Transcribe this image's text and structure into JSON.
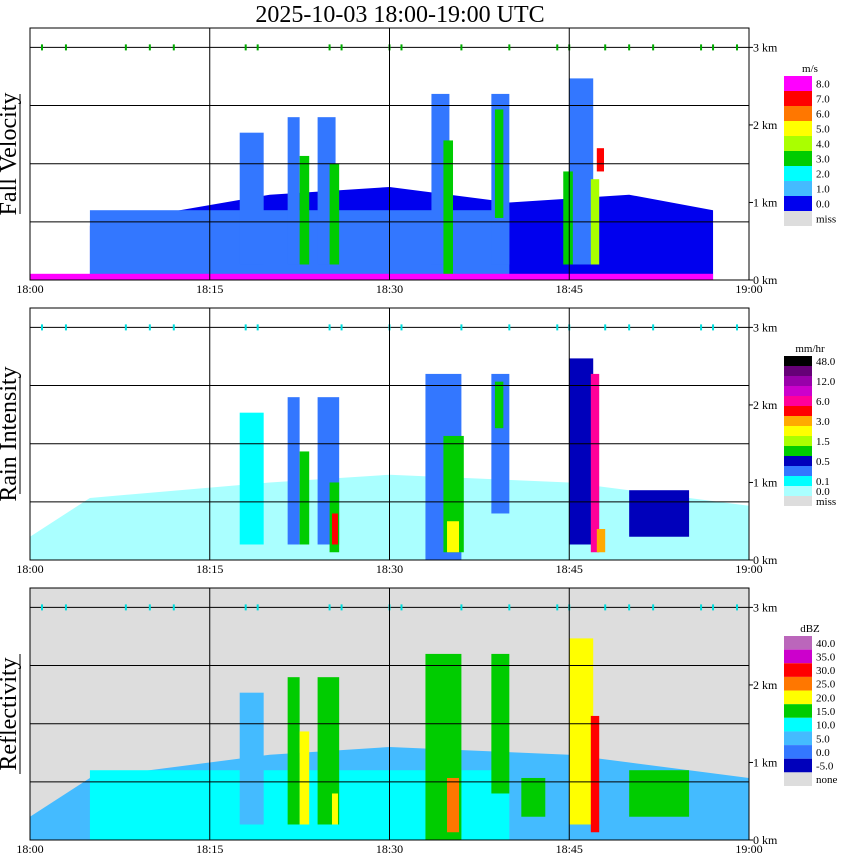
{
  "title": "2025-10-03   18:00-19:00 UTC",
  "time_ticks": [
    "18:00",
    "18:15",
    "18:30",
    "18:45",
    "19:00"
  ],
  "height_ticks": [
    "0 km",
    "1 km",
    "2 km",
    "3 km"
  ],
  "palette": {
    "white": "#ffffff",
    "lightcyan": "#aaffff",
    "cyan": "#00ffff",
    "lightblue": "#44bbff",
    "mediumblue": "#3377ff",
    "blue": "#0000ee",
    "darkblue": "#0000bb",
    "green": "#00cc00",
    "yellowgreen": "#aaff00",
    "yellow": "#ffff00",
    "orange": "#ffaa00",
    "darkorange": "#ff7700",
    "red": "#ff0000",
    "hotpink": "#ff0099",
    "magenta": "#ff00ff",
    "violet": "#cc00cc",
    "purple": "#9900aa",
    "lightpurple": "#bb66bb",
    "darkpurple": "#660077",
    "black": "#000000",
    "miss": "#dddddd"
  },
  "chart_data": [
    {
      "type": "heatmap",
      "panel": "velocity",
      "ylabel": "Fall Velocity",
      "unit": "m/s",
      "time_range": [
        "18:00",
        "19:00"
      ],
      "height_range_km": [
        0,
        3
      ],
      "bg": "white",
      "legend": [
        {
          "label": "8.0",
          "color": "magenta"
        },
        {
          "label": "7.0",
          "color": "red"
        },
        {
          "label": "6.0",
          "color": "darkorange"
        },
        {
          "label": "5.0",
          "color": "yellow"
        },
        {
          "label": "4.0",
          "color": "yellowgreen"
        },
        {
          "label": "3.0",
          "color": "green"
        },
        {
          "label": "2.0",
          "color": "cyan"
        },
        {
          "label": "1.0",
          "color": "lightblue"
        },
        {
          "label": "0.0",
          "color": "blue"
        },
        {
          "label": "miss",
          "color": "miss"
        }
      ],
      "base_layer": [
        [
          5,
          0.7,
          "blue"
        ],
        [
          20,
          1.1,
          "blue"
        ],
        [
          30,
          1.2,
          "blue"
        ],
        [
          40,
          1.0,
          "blue"
        ],
        [
          50,
          1.1,
          "blue"
        ],
        [
          57,
          0.9,
          "blue"
        ]
      ],
      "features": [
        {
          "t": [
            5,
            40
          ],
          "h": [
            0.0,
            0.9
          ],
          "color": "mediumblue"
        },
        {
          "t": [
            17.5,
            19.5
          ],
          "h": [
            0.2,
            1.9
          ],
          "color": "mediumblue"
        },
        {
          "t": [
            21.5,
            22.5
          ],
          "h": [
            0.2,
            2.1
          ],
          "color": "mediumblue"
        },
        {
          "t": [
            24,
            25.5
          ],
          "h": [
            0.2,
            2.1
          ],
          "color": "mediumblue"
        },
        {
          "t": [
            33.5,
            35
          ],
          "h": [
            0.2,
            2.4
          ],
          "color": "mediumblue"
        },
        {
          "t": [
            38.5,
            40
          ],
          "h": [
            0.2,
            2.4
          ],
          "color": "mediumblue"
        },
        {
          "t": [
            45,
            47
          ],
          "h": [
            0.2,
            2.6
          ],
          "color": "mediumblue"
        },
        {
          "t": [
            22.5,
            23.3
          ],
          "h": [
            0.2,
            1.6
          ],
          "color": "green"
        },
        {
          "t": [
            25,
            25.8
          ],
          "h": [
            0.2,
            1.5
          ],
          "color": "green"
        },
        {
          "t": [
            34.5,
            35.3
          ],
          "h": [
            0.0,
            1.8
          ],
          "color": "green"
        },
        {
          "t": [
            38.8,
            39.5
          ],
          "h": [
            0.8,
            2.2
          ],
          "color": "green"
        },
        {
          "t": [
            44.5,
            45.3
          ],
          "h": [
            0.2,
            1.4
          ],
          "color": "green"
        },
        {
          "t": [
            46.8,
            47.5
          ],
          "h": [
            0.2,
            1.3
          ],
          "color": "yellowgreen"
        },
        {
          "t": [
            47.3,
            47.9
          ],
          "h": [
            1.4,
            1.7
          ],
          "color": "red"
        },
        {
          "t": [
            0,
            57
          ],
          "h": [
            0.0,
            0.08
          ],
          "color": "magenta"
        }
      ],
      "dots": [
        1,
        3,
        8,
        10,
        12,
        18,
        19,
        25,
        26,
        30,
        31,
        36,
        40,
        44,
        45,
        48,
        50,
        52,
        56,
        57,
        59
      ]
    },
    {
      "type": "heatmap",
      "panel": "rain",
      "ylabel": "Rain Intensity",
      "unit": "mm/hr",
      "time_range": [
        "18:00",
        "19:00"
      ],
      "height_range_km": [
        0,
        3
      ],
      "bg": "white",
      "legend": [
        {
          "label": "48.0",
          "color": "black"
        },
        {
          "label": "",
          "color": "darkpurple"
        },
        {
          "label": "12.0",
          "color": "purple"
        },
        {
          "label": "",
          "color": "violet"
        },
        {
          "label": "6.0",
          "color": "hotpink"
        },
        {
          "label": "",
          "color": "red"
        },
        {
          "label": "3.0",
          "color": "orange"
        },
        {
          "label": "",
          "color": "yellow"
        },
        {
          "label": "1.5",
          "color": "yellowgreen"
        },
        {
          "label": "",
          "color": "green"
        },
        {
          "label": "0.5",
          "color": "darkblue"
        },
        {
          "label": "",
          "color": "mediumblue"
        },
        {
          "label": "0.1",
          "color": "cyan"
        },
        {
          "label": "0.0",
          "color": "lightcyan"
        },
        {
          "label": "miss",
          "color": "miss"
        }
      ],
      "base_layer": [
        [
          0,
          0.3,
          "lightcyan"
        ],
        [
          5,
          0.8,
          "lightcyan"
        ],
        [
          20,
          1.0,
          "lightcyan"
        ],
        [
          30,
          1.1,
          "lightcyan"
        ],
        [
          45,
          1.0,
          "lightcyan"
        ],
        [
          60,
          0.7,
          "lightcyan"
        ]
      ],
      "features": [
        {
          "t": [
            17.5,
            19.5
          ],
          "h": [
            0.2,
            1.9
          ],
          "color": "cyan"
        },
        {
          "t": [
            21.5,
            22.5
          ],
          "h": [
            0.2,
            2.1
          ],
          "color": "mediumblue"
        },
        {
          "t": [
            24,
            25.8
          ],
          "h": [
            0.2,
            2.1
          ],
          "color": "mediumblue"
        },
        {
          "t": [
            33,
            36
          ],
          "h": [
            0.0,
            2.4
          ],
          "color": "mediumblue"
        },
        {
          "t": [
            38.5,
            40
          ],
          "h": [
            0.6,
            2.4
          ],
          "color": "mediumblue"
        },
        {
          "t": [
            45,
            47
          ],
          "h": [
            0.2,
            2.6
          ],
          "color": "darkblue"
        },
        {
          "t": [
            22.5,
            23.3
          ],
          "h": [
            0.2,
            1.4
          ],
          "color": "green"
        },
        {
          "t": [
            25,
            25.8
          ],
          "h": [
            0.1,
            1.0
          ],
          "color": "green"
        },
        {
          "t": [
            25.2,
            25.7
          ],
          "h": [
            0.2,
            0.6
          ],
          "color": "red"
        },
        {
          "t": [
            34.5,
            36.2
          ],
          "h": [
            0.1,
            1.6
          ],
          "color": "green"
        },
        {
          "t": [
            34.8,
            35.8
          ],
          "h": [
            0.1,
            0.5
          ],
          "color": "yellow"
        },
        {
          "t": [
            38.8,
            39.5
          ],
          "h": [
            1.7,
            2.3
          ],
          "color": "green"
        },
        {
          "t": [
            46.8,
            47.5
          ],
          "h": [
            0.1,
            2.4
          ],
          "color": "hotpink"
        },
        {
          "t": [
            47.3,
            48
          ],
          "h": [
            0.1,
            0.4
          ],
          "color": "orange"
        },
        {
          "t": [
            50,
            55
          ],
          "h": [
            0.3,
            0.9
          ],
          "color": "darkblue"
        }
      ],
      "dots": [
        1,
        3,
        8,
        10,
        12,
        18,
        19,
        25,
        26,
        30,
        31,
        36,
        40,
        44,
        45,
        48,
        50,
        52,
        56,
        57,
        59
      ]
    },
    {
      "type": "heatmap",
      "panel": "reflectivity",
      "ylabel": "Reflectivity",
      "unit": "dBZ",
      "time_range": [
        "18:00",
        "19:00"
      ],
      "height_range_km": [
        0,
        3
      ],
      "bg": "miss",
      "legend": [
        {
          "label": "40.0",
          "color": "lightpurple"
        },
        {
          "label": "35.0",
          "color": "violet"
        },
        {
          "label": "30.0",
          "color": "red"
        },
        {
          "label": "25.0",
          "color": "darkorange"
        },
        {
          "label": "20.0",
          "color": "yellow"
        },
        {
          "label": "15.0",
          "color": "green"
        },
        {
          "label": "10.0",
          "color": "cyan"
        },
        {
          "label": "5.0",
          "color": "lightblue"
        },
        {
          "label": "0.0",
          "color": "mediumblue"
        },
        {
          "label": "-5.0",
          "color": "darkblue"
        },
        {
          "label": "none",
          "color": "miss"
        }
      ],
      "base_layer": [
        [
          0,
          0.3,
          "lightblue"
        ],
        [
          5,
          0.8,
          "lightblue"
        ],
        [
          20,
          1.1,
          "lightblue"
        ],
        [
          30,
          1.2,
          "lightblue"
        ],
        [
          45,
          1.1,
          "lightblue"
        ],
        [
          60,
          0.8,
          "lightblue"
        ]
      ],
      "features": [
        {
          "t": [
            5,
            40
          ],
          "h": [
            0.0,
            0.9
          ],
          "color": "cyan"
        },
        {
          "t": [
            17.5,
            19.5
          ],
          "h": [
            0.2,
            1.9
          ],
          "color": "lightblue"
        },
        {
          "t": [
            21.5,
            22.5
          ],
          "h": [
            0.2,
            2.1
          ],
          "color": "green"
        },
        {
          "t": [
            24,
            25.8
          ],
          "h": [
            0.2,
            2.1
          ],
          "color": "green"
        },
        {
          "t": [
            33,
            36
          ],
          "h": [
            0.0,
            2.4
          ],
          "color": "green"
        },
        {
          "t": [
            38.5,
            40
          ],
          "h": [
            0.6,
            2.4
          ],
          "color": "green"
        },
        {
          "t": [
            45,
            47
          ],
          "h": [
            0.2,
            2.6
          ],
          "color": "yellow"
        },
        {
          "t": [
            22.5,
            23.3
          ],
          "h": [
            0.2,
            1.4
          ],
          "color": "yellow"
        },
        {
          "t": [
            25.2,
            25.7
          ],
          "h": [
            0.2,
            0.6
          ],
          "color": "yellow"
        },
        {
          "t": [
            34.8,
            35.8
          ],
          "h": [
            0.1,
            0.8
          ],
          "color": "darkorange"
        },
        {
          "t": [
            46.8,
            47.5
          ],
          "h": [
            0.1,
            1.6
          ],
          "color": "red"
        },
        {
          "t": [
            50,
            55
          ],
          "h": [
            0.3,
            0.9
          ],
          "color": "green"
        },
        {
          "t": [
            41,
            43
          ],
          "h": [
            0.3,
            0.8
          ],
          "color": "green"
        }
      ],
      "dots": [
        1,
        3,
        8,
        10,
        12,
        18,
        19,
        25,
        26,
        30,
        31,
        36,
        40,
        44,
        45,
        48,
        50,
        52,
        56,
        57,
        59
      ]
    }
  ]
}
